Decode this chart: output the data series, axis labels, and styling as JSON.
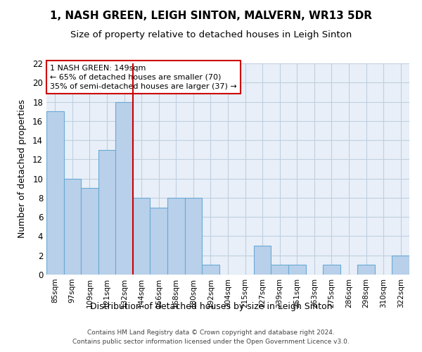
{
  "title1": "1, NASH GREEN, LEIGH SINTON, MALVERN, WR13 5DR",
  "title2": "Size of property relative to detached houses in Leigh Sinton",
  "xlabel": "Distribution of detached houses by size in Leigh Sinton",
  "ylabel": "Number of detached properties",
  "categories": [
    "85sqm",
    "97sqm",
    "109sqm",
    "121sqm",
    "132sqm",
    "144sqm",
    "156sqm",
    "168sqm",
    "180sqm",
    "192sqm",
    "204sqm",
    "215sqm",
    "227sqm",
    "239sqm",
    "251sqm",
    "263sqm",
    "275sqm",
    "286sqm",
    "298sqm",
    "310sqm",
    "322sqm"
  ],
  "values": [
    17,
    10,
    9,
    13,
    18,
    8,
    7,
    8,
    8,
    1,
    0,
    0,
    3,
    1,
    1,
    0,
    1,
    0,
    1,
    0,
    2
  ],
  "bar_color": "#b8d0ea",
  "bar_edgecolor": "#6aaad4",
  "vline_color": "#cc0000",
  "vline_pos": 4.5,
  "annotation_title": "1 NASH GREEN: 149sqm",
  "annotation_line1": "← 65% of detached houses are smaller (70)",
  "annotation_line2": "35% of semi-detached houses are larger (37) →",
  "annotation_box_edgecolor": "#cc0000",
  "ylim": [
    0,
    22
  ],
  "yticks": [
    0,
    2,
    4,
    6,
    8,
    10,
    12,
    14,
    16,
    18,
    20,
    22
  ],
  "footer1": "Contains HM Land Registry data © Crown copyright and database right 2024.",
  "footer2": "Contains public sector information licensed under the Open Government Licence v3.0.",
  "bg_color": "#e8eff8",
  "grid_color": "#c0cfe0"
}
